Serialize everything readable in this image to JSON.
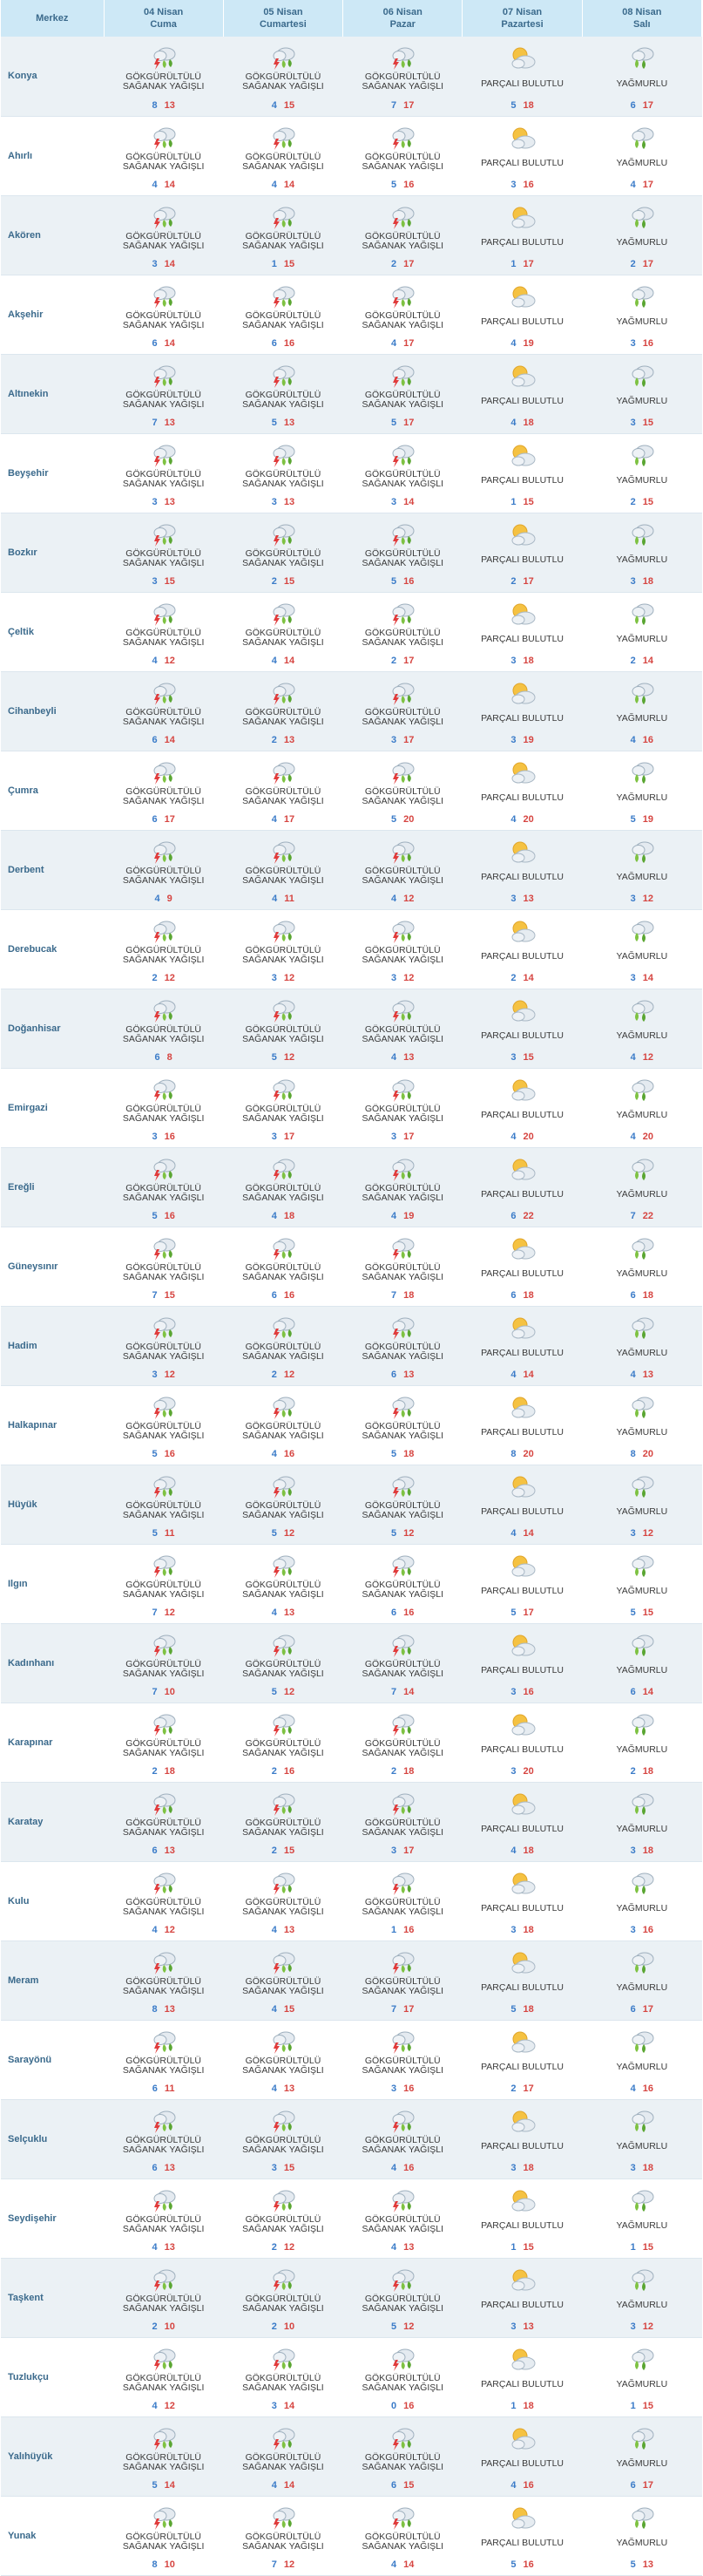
{
  "header": {
    "station_label": "Merkez",
    "days": [
      {
        "date": "04 Nisan",
        "name": "Cuma"
      },
      {
        "date": "05 Nisan",
        "name": "Cumartesi"
      },
      {
        "date": "06 Nisan",
        "name": "Pazar"
      },
      {
        "date": "07 Nisan",
        "name": "Pazartesi"
      },
      {
        "date": "08 Nisan",
        "name": "Salı"
      }
    ]
  },
  "conditions": {
    "storm": {
      "line1": "GÖKGÜRÜLTÜLÜ",
      "line2": "SAĞANAK YAĞIŞLI",
      "icon": "thunderstorm-rain-icon"
    },
    "partly": {
      "line1": "PARÇALI BULUTLU",
      "line2": "",
      "icon": "partly-cloudy-icon"
    },
    "rain": {
      "line1": "YAĞMURLU",
      "line2": "",
      "icon": "rain-icon"
    }
  },
  "day_conditions": [
    "storm",
    "storm",
    "storm",
    "partly",
    "rain"
  ],
  "rows": [
    {
      "city": "Konya",
      "temps": [
        [
          8,
          13
        ],
        [
          4,
          15
        ],
        [
          7,
          17
        ],
        [
          5,
          18
        ],
        [
          6,
          17
        ]
      ]
    },
    {
      "city": "Ahırlı",
      "temps": [
        [
          4,
          14
        ],
        [
          4,
          14
        ],
        [
          5,
          16
        ],
        [
          3,
          16
        ],
        [
          4,
          17
        ]
      ]
    },
    {
      "city": "Akören",
      "temps": [
        [
          3,
          14
        ],
        [
          1,
          15
        ],
        [
          2,
          17
        ],
        [
          1,
          17
        ],
        [
          2,
          17
        ]
      ]
    },
    {
      "city": "Akşehir",
      "temps": [
        [
          6,
          14
        ],
        [
          6,
          16
        ],
        [
          4,
          17
        ],
        [
          4,
          19
        ],
        [
          3,
          16
        ]
      ]
    },
    {
      "city": "Altınekin",
      "temps": [
        [
          7,
          13
        ],
        [
          5,
          13
        ],
        [
          5,
          17
        ],
        [
          4,
          18
        ],
        [
          3,
          15
        ]
      ]
    },
    {
      "city": "Beyşehir",
      "temps": [
        [
          3,
          13
        ],
        [
          3,
          13
        ],
        [
          3,
          14
        ],
        [
          1,
          15
        ],
        [
          2,
          15
        ]
      ]
    },
    {
      "city": "Bozkır",
      "temps": [
        [
          3,
          15
        ],
        [
          2,
          15
        ],
        [
          5,
          16
        ],
        [
          2,
          17
        ],
        [
          3,
          18
        ]
      ]
    },
    {
      "city": "Çeltik",
      "temps": [
        [
          4,
          12
        ],
        [
          4,
          14
        ],
        [
          2,
          17
        ],
        [
          3,
          18
        ],
        [
          2,
          14
        ]
      ]
    },
    {
      "city": "Cihanbeyli",
      "temps": [
        [
          6,
          14
        ],
        [
          2,
          13
        ],
        [
          3,
          17
        ],
        [
          3,
          19
        ],
        [
          4,
          16
        ]
      ]
    },
    {
      "city": "Çumra",
      "temps": [
        [
          6,
          17
        ],
        [
          4,
          17
        ],
        [
          5,
          20
        ],
        [
          4,
          20
        ],
        [
          5,
          19
        ]
      ]
    },
    {
      "city": "Derbent",
      "temps": [
        [
          4,
          9
        ],
        [
          4,
          11
        ],
        [
          4,
          12
        ],
        [
          3,
          13
        ],
        [
          3,
          12
        ]
      ]
    },
    {
      "city": "Derebucak",
      "temps": [
        [
          2,
          12
        ],
        [
          3,
          12
        ],
        [
          3,
          12
        ],
        [
          2,
          14
        ],
        [
          3,
          14
        ]
      ]
    },
    {
      "city": "Doğanhisar",
      "temps": [
        [
          6,
          8
        ],
        [
          5,
          12
        ],
        [
          4,
          13
        ],
        [
          3,
          15
        ],
        [
          4,
          12
        ]
      ]
    },
    {
      "city": "Emirgazi",
      "temps": [
        [
          3,
          16
        ],
        [
          3,
          17
        ],
        [
          3,
          17
        ],
        [
          4,
          20
        ],
        [
          4,
          20
        ]
      ]
    },
    {
      "city": "Ereğli",
      "temps": [
        [
          5,
          16
        ],
        [
          4,
          18
        ],
        [
          4,
          19
        ],
        [
          6,
          22
        ],
        [
          7,
          22
        ]
      ]
    },
    {
      "city": "Güneysınır",
      "temps": [
        [
          7,
          15
        ],
        [
          6,
          16
        ],
        [
          7,
          18
        ],
        [
          6,
          18
        ],
        [
          6,
          18
        ]
      ]
    },
    {
      "city": "Hadim",
      "temps": [
        [
          3,
          12
        ],
        [
          2,
          12
        ],
        [
          6,
          13
        ],
        [
          4,
          14
        ],
        [
          4,
          13
        ]
      ]
    },
    {
      "city": "Halkapınar",
      "temps": [
        [
          5,
          16
        ],
        [
          4,
          16
        ],
        [
          5,
          18
        ],
        [
          8,
          20
        ],
        [
          8,
          20
        ]
      ]
    },
    {
      "city": "Hüyük",
      "temps": [
        [
          5,
          11
        ],
        [
          5,
          12
        ],
        [
          5,
          12
        ],
        [
          4,
          14
        ],
        [
          3,
          12
        ]
      ]
    },
    {
      "city": "Ilgın",
      "temps": [
        [
          7,
          12
        ],
        [
          4,
          13
        ],
        [
          6,
          16
        ],
        [
          5,
          17
        ],
        [
          5,
          15
        ]
      ]
    },
    {
      "city": "Kadınhanı",
      "temps": [
        [
          7,
          10
        ],
        [
          5,
          12
        ],
        [
          7,
          14
        ],
        [
          3,
          16
        ],
        [
          6,
          14
        ]
      ]
    },
    {
      "city": "Karapınar",
      "temps": [
        [
          2,
          18
        ],
        [
          2,
          16
        ],
        [
          2,
          18
        ],
        [
          3,
          20
        ],
        [
          2,
          18
        ]
      ]
    },
    {
      "city": "Karatay",
      "temps": [
        [
          6,
          13
        ],
        [
          2,
          15
        ],
        [
          3,
          17
        ],
        [
          4,
          18
        ],
        [
          3,
          18
        ]
      ]
    },
    {
      "city": "Kulu",
      "temps": [
        [
          4,
          12
        ],
        [
          4,
          13
        ],
        [
          1,
          16
        ],
        [
          3,
          18
        ],
        [
          3,
          16
        ]
      ]
    },
    {
      "city": "Meram",
      "temps": [
        [
          8,
          13
        ],
        [
          4,
          15
        ],
        [
          7,
          17
        ],
        [
          5,
          18
        ],
        [
          6,
          17
        ]
      ]
    },
    {
      "city": "Sarayönü",
      "temps": [
        [
          6,
          11
        ],
        [
          4,
          13
        ],
        [
          3,
          16
        ],
        [
          2,
          17
        ],
        [
          4,
          16
        ]
      ]
    },
    {
      "city": "Selçuklu",
      "temps": [
        [
          6,
          13
        ],
        [
          3,
          15
        ],
        [
          4,
          16
        ],
        [
          3,
          18
        ],
        [
          3,
          18
        ]
      ]
    },
    {
      "city": "Seydişehir",
      "temps": [
        [
          4,
          13
        ],
        [
          2,
          12
        ],
        [
          4,
          13
        ],
        [
          1,
          15
        ],
        [
          1,
          15
        ]
      ]
    },
    {
      "city": "Taşkent",
      "temps": [
        [
          2,
          10
        ],
        [
          2,
          10
        ],
        [
          5,
          12
        ],
        [
          3,
          13
        ],
        [
          3,
          12
        ]
      ]
    },
    {
      "city": "Tuzlukçu",
      "temps": [
        [
          4,
          12
        ],
        [
          3,
          14
        ],
        [
          0,
          16
        ],
        [
          1,
          18
        ],
        [
          1,
          15
        ]
      ]
    },
    {
      "city": "Yalıhüyük",
      "temps": [
        [
          5,
          14
        ],
        [
          4,
          14
        ],
        [
          6,
          15
        ],
        [
          4,
          16
        ],
        [
          6,
          17
        ]
      ]
    },
    {
      "city": "Yunak",
      "temps": [
        [
          8,
          10
        ],
        [
          7,
          12
        ],
        [
          4,
          14
        ],
        [
          5,
          16
        ],
        [
          5,
          13
        ]
      ]
    }
  ]
}
